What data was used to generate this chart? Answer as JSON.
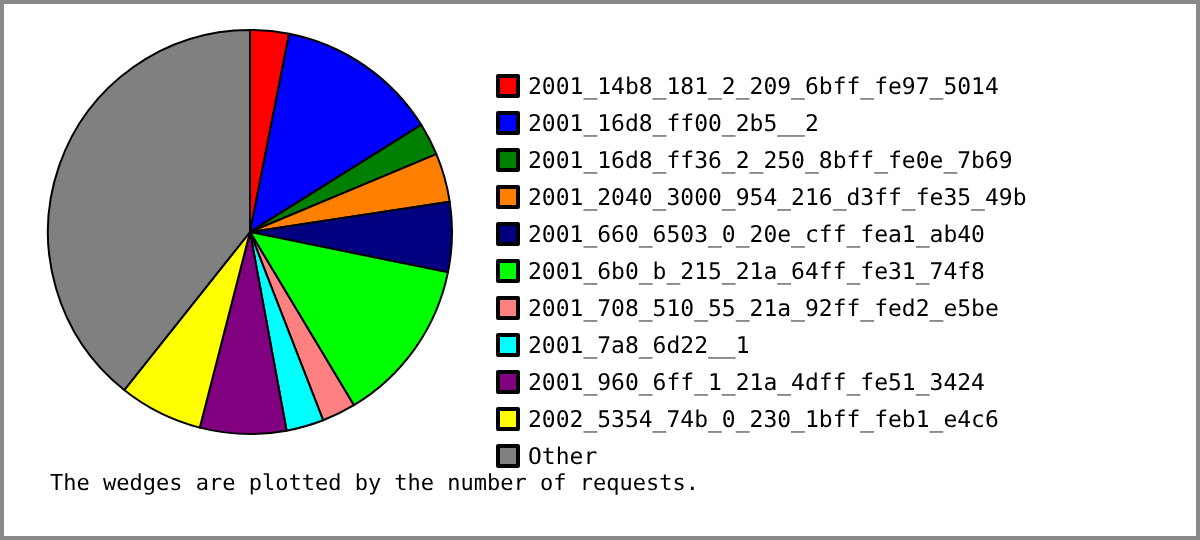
{
  "chart_data": {
    "type": "pie",
    "categories": [
      "2001_14b8_181_2_209_6bff_fe97_5014",
      "2001_16d8_ff00_2b5__2",
      "2001_16d8_ff36_2_250_8bff_fe0e_7b69",
      "2001_2040_3000_954_216_d3ff_fe35_49b",
      "2001_660_6503_0_20e_cff_fea1_ab40",
      "2001_6b0_b_215_21a_64ff_fe31_74f8",
      "2001_708_510_55_21a_92ff_fed2_e5be",
      "2001_7a8_6d22__1",
      "2001_960_6ff_1_21a_4dff_fe51_3424",
      "2002_5354_74b_0_230_1bff_feb1_e4c6",
      "Other"
    ],
    "values": [
      3.1,
      13.0,
      2.6,
      3.9,
      5.6,
      13.2,
      2.7,
      3.0,
      6.9,
      6.7,
      39.3
    ],
    "colors": [
      "#ff0000",
      "#0000ff",
      "#008000",
      "#ff8000",
      "#000080",
      "#00ff00",
      "#ff8080",
      "#00ffff",
      "#800080",
      "#ffff00",
      "#808080"
    ],
    "legend": "right",
    "annotations": [
      "The wedges are plotted by the number of requests."
    ]
  }
}
